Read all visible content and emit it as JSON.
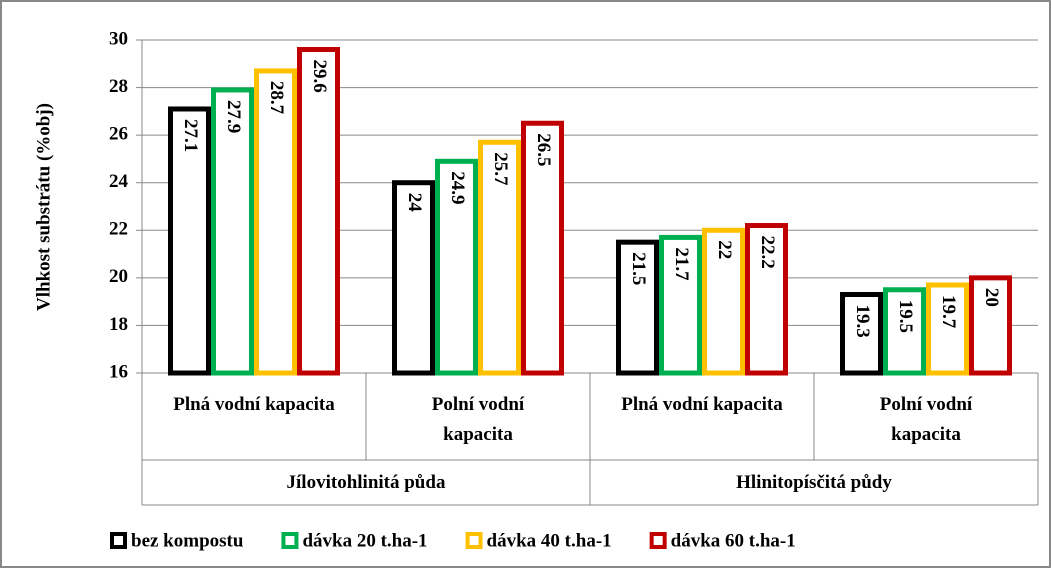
{
  "chart_data": {
    "type": "bar",
    "ylabel": "Vlhkost substrátu (%obj)",
    "categories": [
      "Plná vodní kapacita",
      "Polní vodní\nkapacita",
      "Plná vodní kapacita",
      "Polní vodní\nkapacita"
    ],
    "groups": [
      "Jílovitohlinitá půda",
      "Hlinitopísčitá půdy"
    ],
    "series": [
      {
        "name": "bez kompostu",
        "color": "#000000",
        "values": [
          27.1,
          24,
          21.5,
          19.3
        ]
      },
      {
        "name": "dávka 20 t.ha-1",
        "color": "#00b050",
        "values": [
          27.9,
          24.9,
          21.7,
          19.5
        ]
      },
      {
        "name": "dávka 40 t.ha-1",
        "color": "#ffc000",
        "values": [
          28.7,
          25.7,
          22,
          19.7
        ]
      },
      {
        "name": "dávka 60 t.ha-1",
        "color": "#c00000",
        "values": [
          29.6,
          26.5,
          22.2,
          20
        ]
      }
    ],
    "ylim": [
      16,
      30
    ],
    "yticks": [
      16,
      18,
      20,
      22,
      24,
      26,
      28,
      30
    ],
    "grid": true,
    "legend": "bottom"
  }
}
